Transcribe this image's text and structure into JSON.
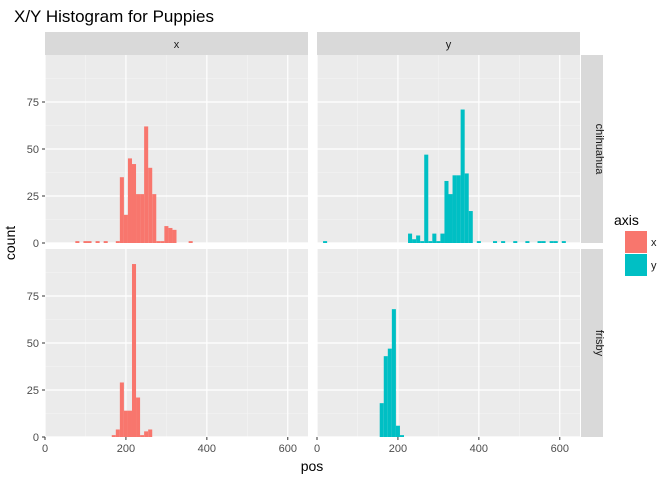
{
  "chart_data": {
    "type": "bar",
    "title": "X/Y Histogram for Puppies",
    "xlabel": "pos",
    "ylabel": "count",
    "xlim": [
      0,
      650
    ],
    "ylim": [
      0,
      100
    ],
    "x_ticks": [
      0,
      200,
      400,
      600
    ],
    "y_ticks": [
      0,
      25,
      50,
      75
    ],
    "bin_width": 10,
    "columns": [
      "x",
      "y"
    ],
    "rows": [
      "chihuahua",
      "frisby"
    ],
    "legend": {
      "title": "axis",
      "position": "right",
      "entries": [
        {
          "label": "x",
          "color": "#F8766D"
        },
        {
          "label": "y",
          "color": "#00BFC4"
        }
      ]
    },
    "colors": {
      "x": "#F8766D",
      "y": "#00BFC4"
    },
    "panels": [
      {
        "column": "x",
        "row": "chihuahua",
        "bins": [
          [
            80,
            1
          ],
          [
            100,
            1
          ],
          [
            110,
            1
          ],
          [
            130,
            1
          ],
          [
            150,
            1
          ],
          [
            180,
            1
          ],
          [
            190,
            35
          ],
          [
            200,
            15
          ],
          [
            210,
            45
          ],
          [
            220,
            42
          ],
          [
            230,
            26
          ],
          [
            240,
            26
          ],
          [
            250,
            62
          ],
          [
            260,
            40
          ],
          [
            270,
            26
          ],
          [
            280,
            1
          ],
          [
            290,
            1
          ],
          [
            300,
            9
          ],
          [
            310,
            8
          ],
          [
            320,
            7
          ],
          [
            360,
            1
          ]
        ]
      },
      {
        "column": "y",
        "row": "chihuahua",
        "bins": [
          [
            20,
            1
          ],
          [
            230,
            5
          ],
          [
            240,
            2
          ],
          [
            250,
            4
          ],
          [
            260,
            1
          ],
          [
            270,
            47
          ],
          [
            280,
            1
          ],
          [
            290,
            5
          ],
          [
            300,
            1
          ],
          [
            310,
            5
          ],
          [
            320,
            33
          ],
          [
            330,
            26
          ],
          [
            340,
            36
          ],
          [
            350,
            36
          ],
          [
            360,
            71
          ],
          [
            370,
            37
          ],
          [
            380,
            17
          ],
          [
            400,
            1
          ],
          [
            440,
            1
          ],
          [
            460,
            1
          ],
          [
            490,
            1
          ],
          [
            520,
            1
          ],
          [
            550,
            1
          ],
          [
            560,
            1
          ],
          [
            580,
            1
          ],
          [
            590,
            1
          ],
          [
            610,
            1
          ]
        ]
      },
      {
        "column": "x",
        "row": "frisby",
        "bins": [
          [
            170,
            1
          ],
          [
            180,
            4
          ],
          [
            190,
            29
          ],
          [
            200,
            14
          ],
          [
            210,
            14
          ],
          [
            220,
            92
          ],
          [
            230,
            21
          ],
          [
            240,
            1
          ],
          [
            250,
            3
          ],
          [
            260,
            4
          ]
        ]
      },
      {
        "column": "y",
        "row": "frisby",
        "bins": [
          [
            160,
            18
          ],
          [
            170,
            43
          ],
          [
            180,
            47
          ],
          [
            190,
            68
          ],
          [
            200,
            6
          ],
          [
            210,
            1
          ]
        ]
      }
    ]
  }
}
